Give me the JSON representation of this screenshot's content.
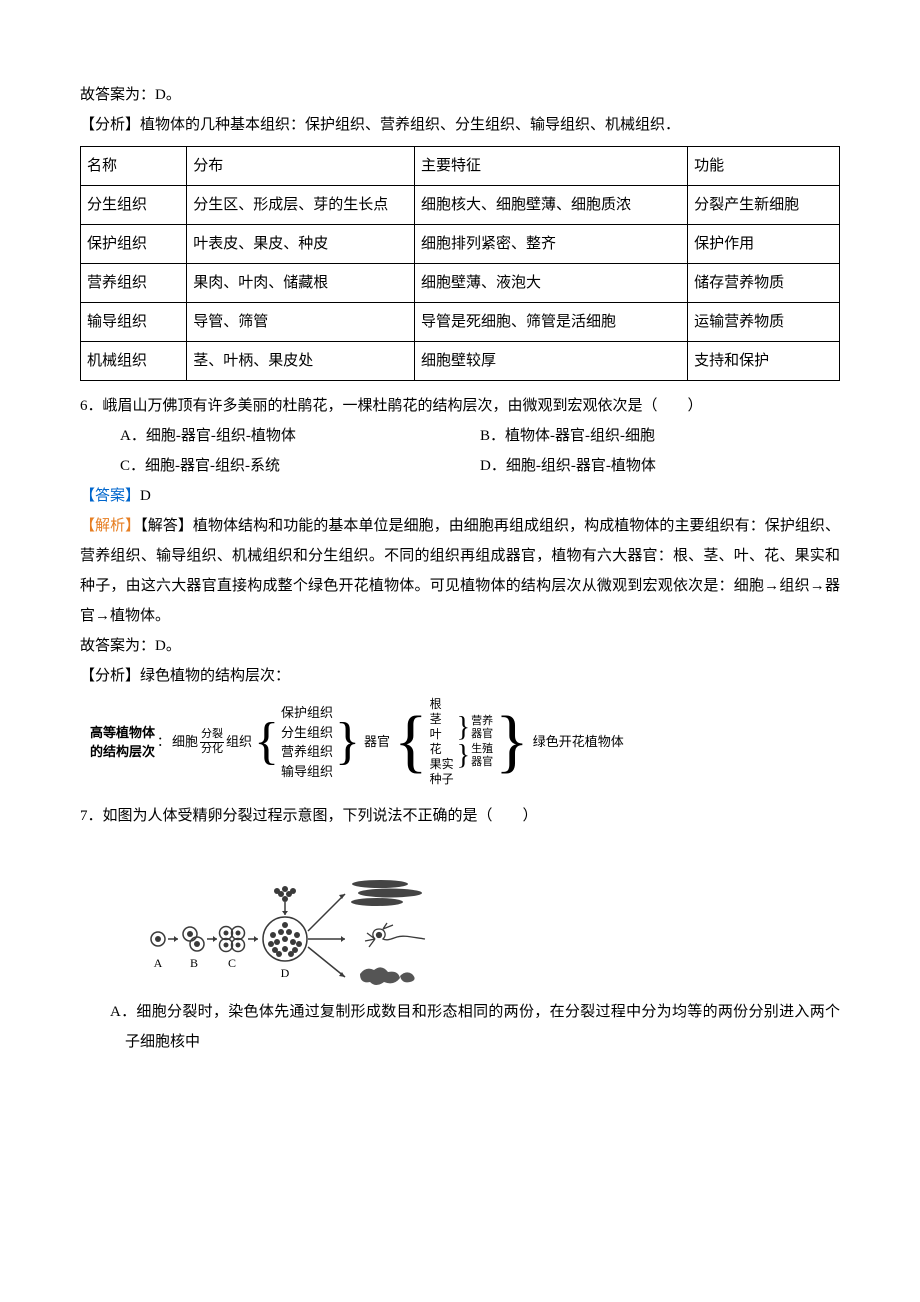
{
  "line_answer_prefix": "故答案为：D。",
  "analysis_intro_prefix": "【分析】",
  "analysis_intro_text": "植物体的几种基本组织：保护组织、营养组织、分生组织、输导组织、机械组织．",
  "table": {
    "col_widths": [
      "14%",
      "30%",
      "36%",
      "20%"
    ],
    "rows": [
      [
        "名称",
        "分布",
        "主要特征",
        "功能"
      ],
      [
        "分生组织",
        "分生区、形成层、芽的生长点",
        "细胞核大、细胞壁薄、细胞质浓",
        "分裂产生新细胞"
      ],
      [
        "保护组织",
        "叶表皮、果皮、种皮",
        "细胞排列紧密、整齐",
        "保护作用"
      ],
      [
        "营养组织",
        "果肉、叶肉、储藏根",
        "细胞壁薄、液泡大",
        "储存营养物质"
      ],
      [
        "输导组织",
        "导管、筛管",
        "导管是死细胞、筛管是活细胞",
        "运输营养物质"
      ],
      [
        "机械组织",
        "茎、叶柄、果皮处",
        "细胞壁较厚",
        "支持和保护"
      ]
    ]
  },
  "q6": {
    "stem": "6．峨眉山万佛顶有许多美丽的杜鹃花，一棵杜鹃花的结构层次，由微观到宏观依次是（　　）",
    "opts": {
      "A": "A．细胞-器官-组织-植物体",
      "B": "B．植物体-器官-组织-细胞",
      "C": "C．细胞-器官-组织-系统",
      "D": "D．细胞-组织-器官-植物体"
    },
    "answer_label": "【答案】",
    "answer_val": "D",
    "explain_label": "【解析】",
    "explain_sub": "【解答】",
    "explain_text": "植物体结构和功能的基本单位是细胞，由细胞再组成组织，构成植物体的主要组织有：保护组织、营养组织、输导组织、机械组织和分生组织。不同的组织再组成器官，植物有六大器官：根、茎、叶、花、果实和种子，由这六大器官直接构成整个绿色开花植物体。可见植物体的结构层次从微观到宏观依次是：细胞→组织→器官→植物体。",
    "answer_line": "故答案为：D。",
    "analysis_label": "【分析】",
    "analysis_text": "绿色植物的结构层次："
  },
  "hier": {
    "left1": "高等植物体",
    "left2": "的结构层次",
    "colon": "：",
    "cell": "细胞",
    "split_top": "分裂",
    "split_bot": "分化",
    "tissue": "组织",
    "tissues": [
      "保护组织",
      "分生组织",
      "营养组织",
      "输导组织"
    ],
    "organ": "器官",
    "organs": [
      "根",
      "茎",
      "叶",
      "花",
      "果实",
      "种子"
    ],
    "grp1": "营养",
    "grp1b": "器官",
    "grp2": "生殖",
    "grp2b": "器官",
    "final": "绿色开花植物体"
  },
  "q7": {
    "stem": "7．如图为人体受精卵分裂过程示意图，下列说法不正确的是（　　）",
    "labels": [
      "A",
      "B",
      "C",
      "D"
    ],
    "optA": "A．细胞分裂时，染色体先通过复制形成数目和形态相同的两份，在分裂过程中分为均等的两份分别进入两个子细胞核中"
  },
  "colors": {
    "text": "#000000",
    "blue": "#0066cc",
    "orange": "#e67e22",
    "fig_dark": "#3a3a3a",
    "fig_grey": "#6b6b6b"
  }
}
